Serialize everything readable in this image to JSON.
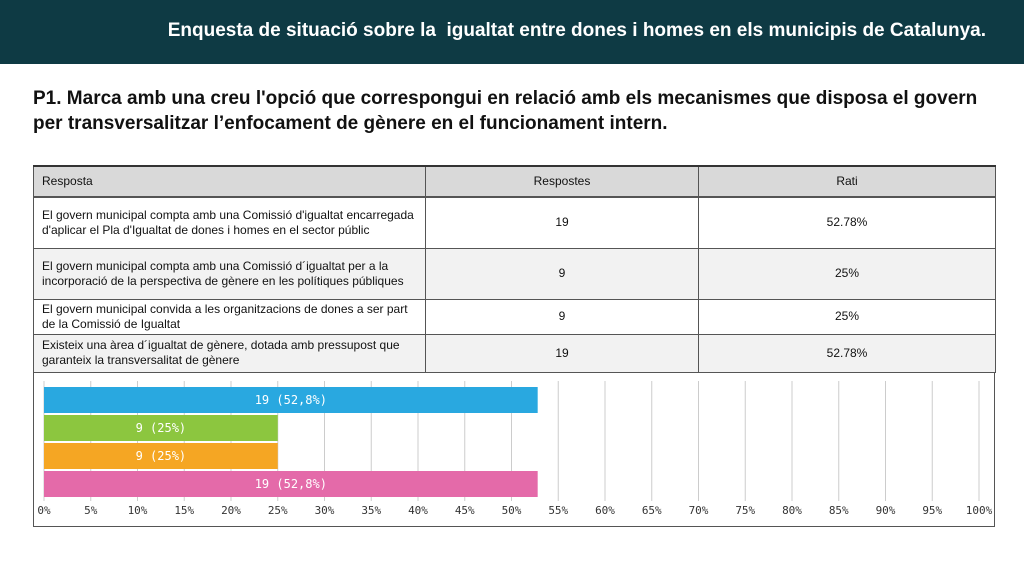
{
  "header": {
    "title": "Enquesta de situació sobre la  igualtat entre dones i homes en els municipis de Catalunya."
  },
  "question": {
    "text": "P1. Marca amb una creu l'opció que correspongui en relació amb els mecanismes que disposa el govern per transversalitzar l’enfocament de  gènere en el funcionament intern."
  },
  "table": {
    "headers": [
      "Resposta",
      "Respostes",
      "Rati"
    ],
    "rows": [
      {
        "resposta": "El govern municipal compta amb una Comissió d'igualtat encarregada d'aplicar el Pla d'Igualtat de dones i homes en el sector públic",
        "respostes": "19",
        "rati": "52.78%"
      },
      {
        "resposta": "El govern  municipal compta amb una Comissió d´igualtat per a la incorporació de la perspectiva de gènere en les polítiques públiques",
        "respostes": "9",
        "rati": "25%"
      },
      {
        "resposta": "El govern municipal convida a les organitzacions de dones a ser part de la Comissió de Igualtat",
        "respostes": "9",
        "rati": "25%"
      },
      {
        "resposta": "Existeix una àrea d´igualtat de gènere, dotada amb pressupost que garanteix la transversalitat de gènere",
        "respostes": "19",
        "rati": "52.78%"
      }
    ]
  },
  "chart_data": {
    "type": "bar",
    "orientation": "horizontal",
    "categories": [
      "El govern municipal compta amb una Comissió d'igualtat encarregada d'aplicar el Pla d'Igualtat de dones i homes en el sector públic",
      "El govern  municipal compta amb una Comissió d´igualtat per a la incorporació de la perspectiva de gènere en les polítiques públiques",
      "El govern municipal convida a les organitzacions de dones a ser part de la Comissió de Igualtat",
      "Existeix una àrea d´igualtat de gènere, dotada amb pressupost que garanteix la transversalitat de gènere"
    ],
    "values": [
      52.8,
      25,
      25,
      52.8
    ],
    "data_labels": [
      "19 (52,8%)",
      "9 (25%)",
      "9 (25%)",
      "19 (52,8%)"
    ],
    "colors": [
      "#29a8e0",
      "#8cc63f",
      "#f5a623",
      "#e46aa9"
    ],
    "xlim": [
      0,
      100
    ],
    "xticks": [
      "0%",
      "5%",
      "10%",
      "15%",
      "20%",
      "25%",
      "30%",
      "35%",
      "40%",
      "45%",
      "50%",
      "55%",
      "60%",
      "65%",
      "70%",
      "75%",
      "80%",
      "85%",
      "90%",
      "95%",
      "100%"
    ],
    "grid": true
  }
}
